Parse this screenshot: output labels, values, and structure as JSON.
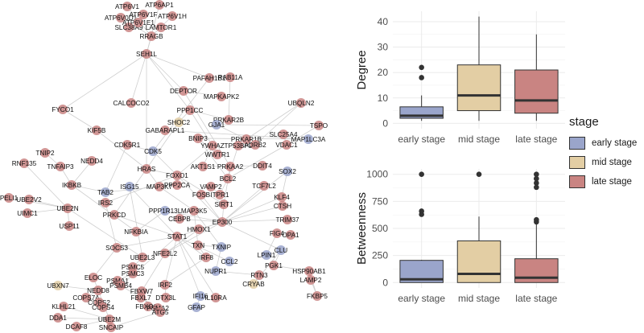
{
  "network": {
    "nodes": [
      {
        "id": "AT1",
        "label": "ATP6V1",
        "stage": "late"
      },
      {
        "id": "AT2",
        "label": "ATP6AP1",
        "stage": "late"
      },
      {
        "id": "AT3",
        "label": "ATP6V1F",
        "stage": "late"
      },
      {
        "id": "AT4",
        "label": "ATP6V0D1",
        "stage": "late"
      },
      {
        "id": "AT5",
        "label": "ATP6V1H",
        "stage": "late"
      },
      {
        "id": "AT6",
        "label": "SLC38A9",
        "stage": "late"
      },
      {
        "id": "AT7",
        "label": "LAMTOR1",
        "stage": "late"
      },
      {
        "id": "AT8",
        "label": "ATP6V1E1",
        "stage": "late"
      },
      {
        "id": "RRAGB",
        "label": "RRAGB",
        "stage": "late"
      },
      {
        "id": "SEH1L",
        "label": "SEH1L",
        "stage": "late"
      },
      {
        "id": "PAFAH1B1",
        "label": "PAFAH1B1",
        "stage": "late"
      },
      {
        "id": "RAB11A",
        "label": "RAB11A",
        "stage": "late"
      },
      {
        "id": "DEPTOR",
        "label": "DEPTOR",
        "stage": "late"
      },
      {
        "id": "MAPKAPK2",
        "label": "MAPKAPK2",
        "stage": "late"
      },
      {
        "id": "UBQLN2",
        "label": "UBQLN2",
        "stage": "late"
      },
      {
        "id": "CALCOCO2",
        "label": "CALCOCO2",
        "stage": "late"
      },
      {
        "id": "PPP1CC",
        "label": "PPP1CC",
        "stage": "late"
      },
      {
        "id": "PRKAR2B",
        "label": "PRKAR2B",
        "stage": "late"
      },
      {
        "id": "FYCO1",
        "label": "FYCO1",
        "stage": "late"
      },
      {
        "id": "SHOC2",
        "label": "SHOC2",
        "stage": "mid"
      },
      {
        "id": "GJA1",
        "label": "GJA1",
        "stage": "early"
      },
      {
        "id": "TSPO",
        "label": "TSPO",
        "stage": "late"
      },
      {
        "id": "GABARAPL1",
        "label": "GABARAPL1",
        "stage": "late"
      },
      {
        "id": "KIF5B",
        "label": "KIF5B",
        "stage": "late"
      },
      {
        "id": "BNIP3",
        "label": "BNIP3",
        "stage": "late"
      },
      {
        "id": "SLC25A4",
        "label": "SLC25A4",
        "stage": "late"
      },
      {
        "id": "YWHAZ",
        "label": "YWHAZ",
        "stage": "late"
      },
      {
        "id": "TP53BP2",
        "label": "TP53BP2",
        "stage": "late"
      },
      {
        "id": "PRKAR1B",
        "label": "PRKAR1B",
        "stage": "late"
      },
      {
        "id": "MAP1LC3A",
        "label": "MAP1LC3A",
        "stage": "early"
      },
      {
        "id": "CDK5R1",
        "label": "CDK5R1",
        "stage": "late"
      },
      {
        "id": "WWTR1",
        "label": "WWTR1",
        "stage": "late"
      },
      {
        "id": "ADRB2",
        "label": "ADRB2",
        "stage": "late"
      },
      {
        "id": "VDAC1",
        "label": "VDAC1",
        "stage": "late"
      },
      {
        "id": "CDK5",
        "label": "CDK5",
        "stage": "early"
      },
      {
        "id": "TNIP2",
        "label": "TNIP2",
        "stage": "late"
      },
      {
        "id": "NEDD4",
        "label": "NEDD4",
        "stage": "late"
      },
      {
        "id": "RNF135",
        "label": "RNF135",
        "stage": "late"
      },
      {
        "id": "TNFAIP3",
        "label": "TNFAIP3",
        "stage": "late"
      },
      {
        "id": "HRAS",
        "label": "HRAS",
        "stage": "late"
      },
      {
        "id": "AKT1S1",
        "label": "AKT1S1",
        "stage": "late"
      },
      {
        "id": "DDIT4",
        "label": "DDIT4",
        "stage": "late"
      },
      {
        "id": "PRKAA",
        "label": "PRKAA2",
        "stage": "late"
      },
      {
        "id": "SOX2",
        "label": "SOX2",
        "stage": "early"
      },
      {
        "id": "FOXO1",
        "label": "FOXO1",
        "stage": "late"
      },
      {
        "id": "BCL2",
        "label": "BCL2",
        "stage": "late"
      },
      {
        "id": "IKBKB",
        "label": "IKBKB",
        "stage": "late"
      },
      {
        "id": "TAB2",
        "label": "TAB2",
        "stage": "early"
      },
      {
        "id": "ISG15",
        "label": "ISG15",
        "stage": "early"
      },
      {
        "id": "MAP3K7",
        "label": "MAP3K7",
        "stage": "late"
      },
      {
        "id": "PPP2CA",
        "label": "PPP2CA",
        "stage": "late"
      },
      {
        "id": "VAMP2",
        "label": "VAMP2",
        "stage": "late"
      },
      {
        "id": "TCF7L2",
        "label": "TCF7L2",
        "stage": "late"
      },
      {
        "id": "PELI1",
        "label": "PELI1",
        "stage": "late"
      },
      {
        "id": "UBE2V2",
        "label": "UBE2V2",
        "stage": "late"
      },
      {
        "id": "IRS2",
        "label": "IRS2",
        "stage": "late"
      },
      {
        "id": "FOSB",
        "label": "FOSB",
        "stage": "late"
      },
      {
        "id": "ITPR1",
        "label": "ITPR1",
        "stage": "late"
      },
      {
        "id": "KLF4",
        "label": "KLF4",
        "stage": "late"
      },
      {
        "id": "UBE2N",
        "label": "UBE2N",
        "stage": "late"
      },
      {
        "id": "UIMC1",
        "label": "UIMC1",
        "stage": "late"
      },
      {
        "id": "SIRT1",
        "label": "SIRT1",
        "stage": "late"
      },
      {
        "id": "PRKCD",
        "label": "PRKCD",
        "stage": "late"
      },
      {
        "id": "PPP1R13L",
        "label": "PPP1R13L",
        "stage": "early"
      },
      {
        "id": "MAP3K5",
        "label": "MAP3K5",
        "stage": "late"
      },
      {
        "id": "CTSH",
        "label": "CTSH",
        "stage": "late"
      },
      {
        "id": "CEBPB",
        "label": "CEBPB",
        "stage": "late"
      },
      {
        "id": "EP300",
        "label": "EP300",
        "stage": "late"
      },
      {
        "id": "TRIM37",
        "label": "TRIM37",
        "stage": "late"
      },
      {
        "id": "USP11",
        "label": "USP11",
        "stage": "late"
      },
      {
        "id": "NFKBIA",
        "label": "NFKBIA",
        "stage": "late"
      },
      {
        "id": "HMOX1",
        "label": "HMOX1",
        "stage": "late"
      },
      {
        "id": "FIG4",
        "label": "FIG4",
        "stage": "late"
      },
      {
        "id": "OPA1",
        "label": "OPA1",
        "stage": "late"
      },
      {
        "id": "STAT1",
        "label": "STAT1",
        "stage": "late"
      },
      {
        "id": "SOCS3",
        "label": "SOCS3",
        "stage": "late"
      },
      {
        "id": "TXN",
        "label": "TXN",
        "stage": "late"
      },
      {
        "id": "TXNIP",
        "label": "TXNIP",
        "stage": "early"
      },
      {
        "id": "NFE2L2",
        "label": "NFE2L2",
        "stage": "late"
      },
      {
        "id": "CLU",
        "label": "CLU",
        "stage": "early"
      },
      {
        "id": "LPIN1",
        "label": "LPIN1",
        "stage": "early"
      },
      {
        "id": "UBE2L3",
        "label": "UBE2L3",
        "stage": "late"
      },
      {
        "id": "IRF8",
        "label": "IRF8",
        "stage": "late"
      },
      {
        "id": "PSMC5",
        "label": "PSMC5",
        "stage": "late"
      },
      {
        "id": "CCL2",
        "label": "CCL2",
        "stage": "early"
      },
      {
        "id": "PGK1",
        "label": "PGK1",
        "stage": "late"
      },
      {
        "id": "HSP90AB1",
        "label": "HSP90AB1",
        "stage": "late"
      },
      {
        "id": "PSMC3",
        "label": "PSMC3",
        "stage": "late"
      },
      {
        "id": "NUPR1",
        "label": "NUPR1",
        "stage": "early"
      },
      {
        "id": "RTN3",
        "label": "RTN3",
        "stage": "late"
      },
      {
        "id": "ELOC",
        "label": "ELOC",
        "stage": "late"
      },
      {
        "id": "PSMA1",
        "label": "PSMA1",
        "stage": "late"
      },
      {
        "id": "PSMB4",
        "label": "PSMB4",
        "stage": "late"
      },
      {
        "id": "IRF2",
        "label": "IRF2",
        "stage": "late"
      },
      {
        "id": "CRYAB",
        "label": "CRYAB",
        "stage": "mid"
      },
      {
        "id": "LAMP2",
        "label": "LAMP2",
        "stage": "late"
      },
      {
        "id": "UBXN7",
        "label": "UBXN7",
        "stage": "mid"
      },
      {
        "id": "NEDD8",
        "label": "NEDD8",
        "stage": "late"
      },
      {
        "id": "FBXW7",
        "label": "FBXW7",
        "stage": "late"
      },
      {
        "id": "DTX3L",
        "label": "DTX3L",
        "stage": "late"
      },
      {
        "id": "COPS7A",
        "label": "COPS7A",
        "stage": "late"
      },
      {
        "id": "FBXL7",
        "label": "FBXL7",
        "stage": "late"
      },
      {
        "id": "IFI16",
        "label": "IFI16",
        "stage": "early"
      },
      {
        "id": "IL10RA",
        "label": "IL10RA",
        "stage": "late"
      },
      {
        "id": "COPS2",
        "label": "COPS2",
        "stage": "late"
      },
      {
        "id": "FBXO30",
        "label": "FBXO30",
        "stage": "late"
      },
      {
        "id": "FKBP5",
        "label": "FKBP5",
        "stage": "late"
      },
      {
        "id": "KLHL21",
        "label": "KLHL21",
        "stage": "late"
      },
      {
        "id": "COPS4",
        "label": "COPS4",
        "stage": "late"
      },
      {
        "id": "PSMA2",
        "label": "PSMA2",
        "stage": "late"
      },
      {
        "id": "GFAP",
        "label": "GFAP",
        "stage": "early"
      },
      {
        "id": "DDA1",
        "label": "DDA1",
        "stage": "late"
      },
      {
        "id": "UBE2M",
        "label": "UBE2M",
        "stage": "late"
      },
      {
        "id": "ATG5",
        "label": "ATG5",
        "stage": "late"
      },
      {
        "id": "DCAF8",
        "label": "DCAF8",
        "stage": "late"
      },
      {
        "id": "SNCAIP",
        "label": "SNCAIP",
        "stage": "late"
      }
    ]
  },
  "legend": {
    "title": "stage",
    "items": [
      {
        "label": "early stage",
        "color": "#9aa5cb"
      },
      {
        "label": "mid stage",
        "color": "#e3cea4"
      },
      {
        "label": "late stage",
        "color": "#c98482"
      }
    ]
  },
  "colors": {
    "early": "#9aa5cb",
    "mid": "#e3cea4",
    "late": "#c98482",
    "grid": "#ebebeb",
    "edge": "#cfcfcf"
  },
  "chart_data": [
    {
      "type": "box",
      "title": "",
      "ylabel": "Degree",
      "xlabel": "",
      "categories": [
        "early stage",
        "mid stage",
        "late stage"
      ],
      "ylim": [
        0,
        42
      ],
      "yticks": [
        0,
        10,
        20,
        30,
        40
      ],
      "boxes": [
        {
          "name": "early stage",
          "q1": 2,
          "median": 3,
          "q3": 6.5,
          "whisker_low": 1,
          "whisker_high": 11,
          "outliers": [
            18,
            22
          ]
        },
        {
          "name": "mid stage",
          "q1": 5,
          "median": 11,
          "q3": 23,
          "whisker_low": 1,
          "whisker_high": 42,
          "outliers": []
        },
        {
          "name": "late stage",
          "q1": 4,
          "median": 9,
          "q3": 21,
          "whisker_low": 1,
          "whisker_high": 35,
          "outliers": []
        }
      ]
    },
    {
      "type": "box",
      "title": "",
      "ylabel": "Betweenness",
      "xlabel": "",
      "categories": [
        "early stage",
        "mid stage",
        "late stage"
      ],
      "ylim": [
        0,
        1000
      ],
      "yticks": [
        0,
        250,
        500,
        750,
        1000
      ],
      "boxes": [
        {
          "name": "early stage",
          "q1": 0,
          "median": 30,
          "q3": 205,
          "whisker_low": 0,
          "whisker_high": 210,
          "outliers": [
            630,
            660,
            1000
          ]
        },
        {
          "name": "mid stage",
          "q1": 0,
          "median": 80,
          "q3": 385,
          "whisker_low": 0,
          "whisker_high": 610,
          "outliers": [
            1000
          ]
        },
        {
          "name": "late stage",
          "q1": 0,
          "median": 45,
          "q3": 220,
          "whisker_low": 0,
          "whisker_high": 540,
          "outliers": [
            560,
            580,
            880,
            920,
            960,
            1000
          ]
        }
      ]
    }
  ]
}
